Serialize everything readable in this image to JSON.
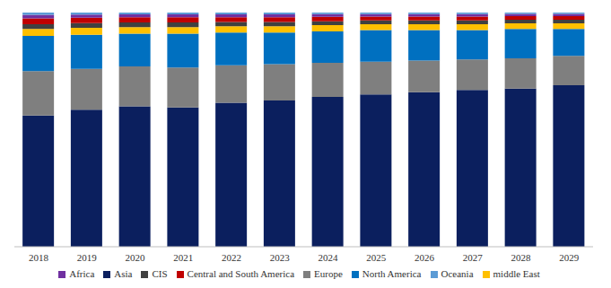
{
  "chart_data": {
    "type": "bar",
    "stacked": true,
    "grid": false,
    "legend": "bottom",
    "tick_labels": "x",
    "ylim": [
      0,
      100
    ],
    "categories": [
      "2018",
      "2019",
      "2020",
      "2021",
      "2022",
      "2023",
      "2024",
      "2025",
      "2026",
      "2027",
      "2028",
      "2029"
    ],
    "series": [
      {
        "name": "Asia",
        "color": "#0b1f5e",
        "values": [
          56,
          58.5,
          60,
          59.5,
          61.5,
          62.5,
          64,
          65,
          66,
          67,
          67.5,
          69
        ]
      },
      {
        "name": "Europe",
        "color": "#7f7f7f",
        "values": [
          19,
          17.5,
          17,
          17,
          16,
          15.5,
          14.5,
          14,
          13.5,
          13,
          13,
          12.5
        ]
      },
      {
        "name": "North America",
        "color": "#0070c0",
        "values": [
          15,
          14.5,
          14,
          14.5,
          14,
          13.5,
          13.5,
          13.5,
          13,
          12.5,
          12.5,
          11.5
        ]
      },
      {
        "name": "middle East",
        "color": "#ffc000",
        "values": [
          3,
          3,
          2.8,
          2.8,
          2.7,
          2.7,
          2.6,
          2.5,
          2.5,
          2.5,
          2.4,
          2.4
        ]
      },
      {
        "name": "CIS",
        "color": "#404040",
        "values": [
          2,
          2,
          2,
          2,
          1.8,
          1.8,
          1.7,
          1.6,
          1.6,
          1.6,
          1.5,
          1.5
        ]
      },
      {
        "name": "Central and South America",
        "color": "#c00000",
        "values": [
          2.5,
          2.3,
          2.2,
          2.2,
          2,
          2,
          1.9,
          1.7,
          1.7,
          1.7,
          1.6,
          1.6
        ]
      },
      {
        "name": "Africa",
        "color": "#7030a0",
        "values": [
          1.5,
          1.3,
          1.2,
          1.2,
          1.2,
          1.2,
          1.1,
          1,
          1,
          1,
          0.9,
          0.9
        ]
      },
      {
        "name": "Oceania",
        "color": "#5b9bd5",
        "values": [
          1,
          0.9,
          0.8,
          0.8,
          0.8,
          0.8,
          0.7,
          0.7,
          0.7,
          0.7,
          0.6,
          0.6
        ]
      }
    ]
  }
}
